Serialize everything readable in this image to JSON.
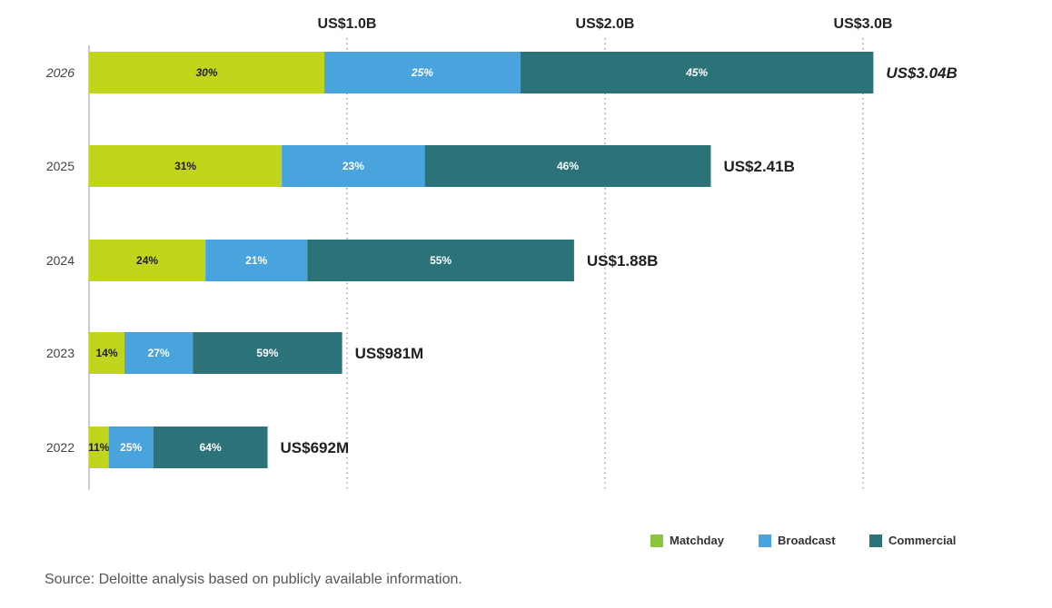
{
  "chart_data": {
    "type": "bar",
    "orientation": "horizontal",
    "stacked": true,
    "categories": [
      "2026",
      "2025",
      "2024",
      "2023",
      "2022"
    ],
    "totals": [
      3.04,
      2.41,
      1.88,
      0.981,
      0.692
    ],
    "total_labels": [
      "US$3.04B",
      "US$2.41B",
      "US$1.88B",
      "US$981M",
      "US$692M"
    ],
    "series": [
      {
        "name": "Matchday",
        "color": "#c0d51b",
        "legend_color": "#8cc63f",
        "percent": [
          30,
          31,
          24,
          14,
          11
        ],
        "labels": [
          "30%",
          "31%",
          "24%",
          "14%",
          "11%"
        ]
      },
      {
        "name": "Broadcast",
        "color": "#49a3dd",
        "legend_color": "#49a3dd",
        "percent": [
          25,
          23,
          21,
          27,
          25
        ],
        "labels": [
          "25%",
          "23%",
          "21%",
          "27%",
          "25%"
        ]
      },
      {
        "name": "Commercial",
        "color": "#2b7279",
        "legend_color": "#2b7279",
        "percent": [
          45,
          46,
          55,
          59,
          64
        ],
        "labels": [
          "45%",
          "46%",
          "55%",
          "59%",
          "64%"
        ]
      }
    ],
    "xlim": [
      0,
      3.0
    ],
    "xticks": [
      1.0,
      2.0,
      3.0
    ],
    "xtick_labels": [
      "US$1.0B",
      "US$2.0B",
      "US$3.0B"
    ],
    "x_axis_position": "top",
    "grid": "vertical-dotted",
    "legend_position": "bottom-right",
    "emphasized_category": "2026"
  },
  "source_note": "Source: Deloitte analysis based on publicly available information."
}
